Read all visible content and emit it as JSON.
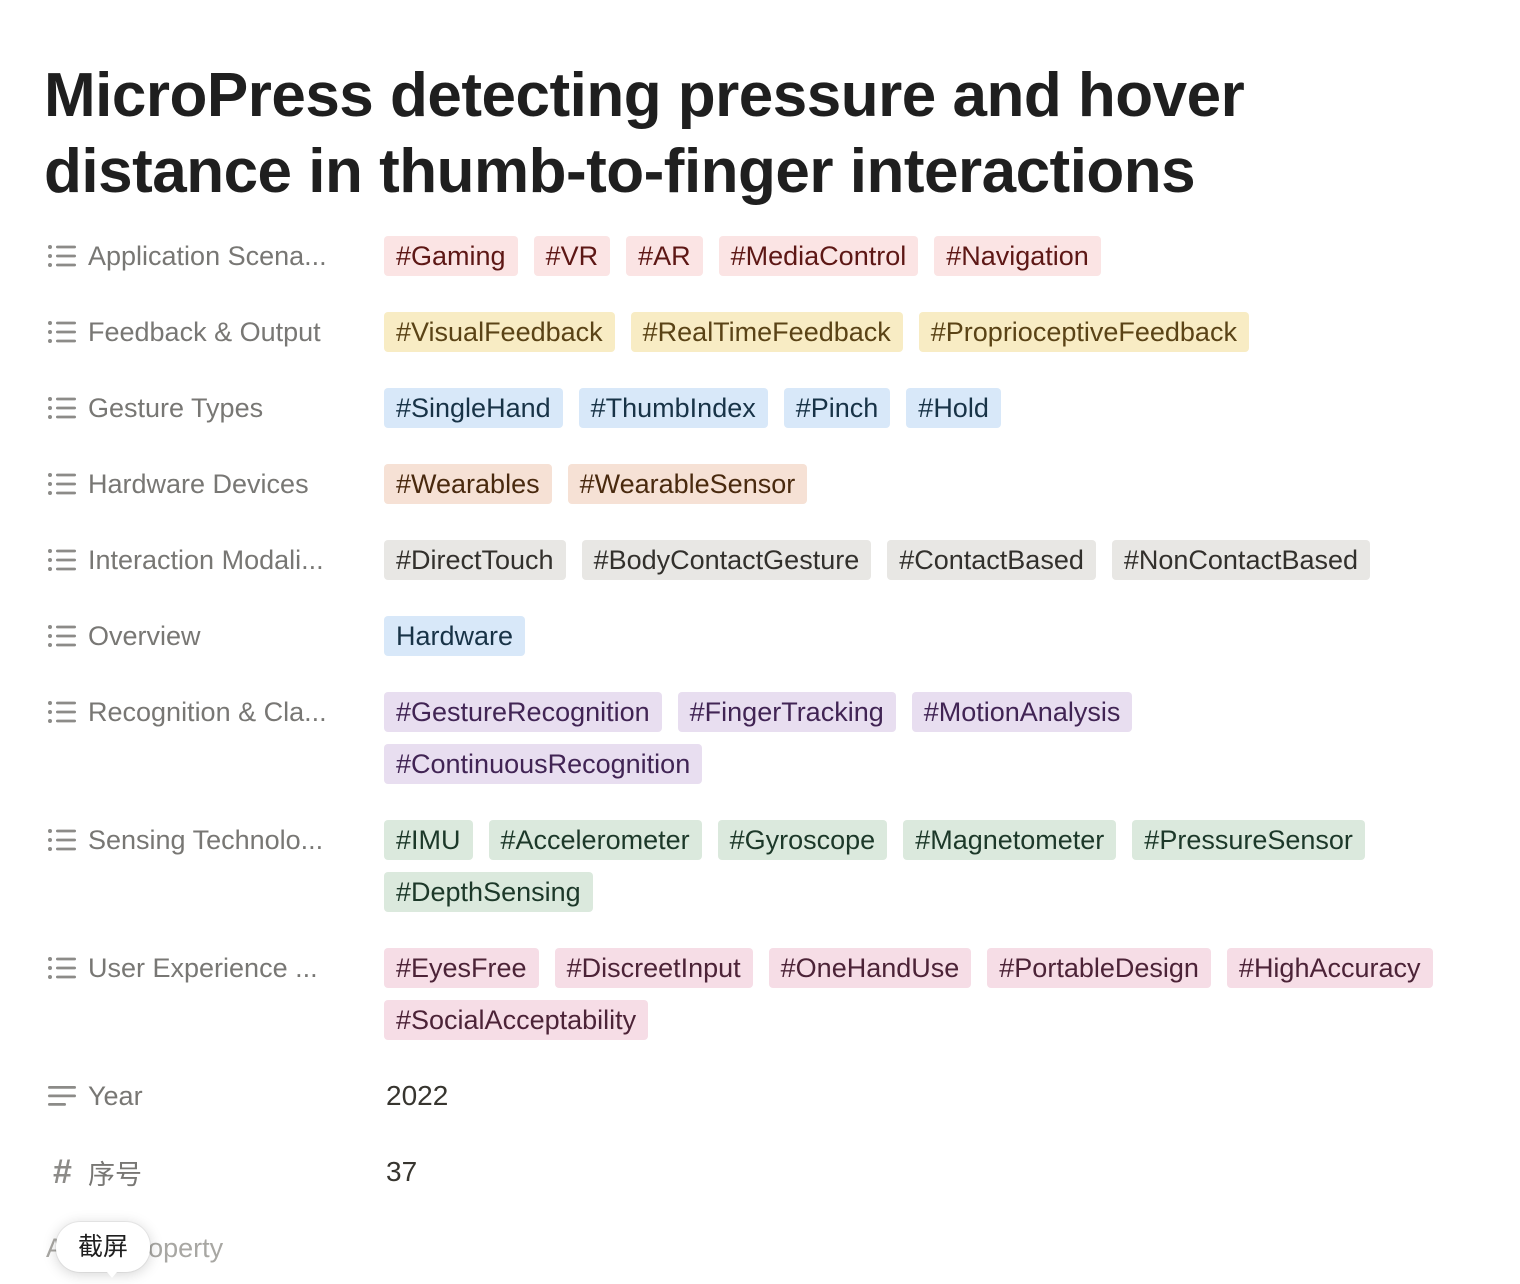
{
  "page": {
    "title": "MicroPress detecting pressure and hover distance in thumb-to-finger interactions"
  },
  "properties": [
    {
      "id": "application",
      "label": "Application Scena...",
      "icon": "list-icon",
      "tags": [
        {
          "text": "#Gaming",
          "color": "red"
        },
        {
          "text": "#VR",
          "color": "red"
        },
        {
          "text": "#AR",
          "color": "red"
        },
        {
          "text": "#MediaControl",
          "color": "red"
        },
        {
          "text": "#Navigation",
          "color": "red"
        }
      ]
    },
    {
      "id": "feedback",
      "label": "Feedback & Output",
      "icon": "list-icon",
      "tags": [
        {
          "text": "#VisualFeedback",
          "color": "yellow"
        },
        {
          "text": "#RealTimeFeedback",
          "color": "yellow"
        },
        {
          "text": "#ProprioceptiveFeedback",
          "color": "yellow"
        }
      ]
    },
    {
      "id": "gesture",
      "label": "Gesture Types",
      "icon": "list-icon",
      "tags": [
        {
          "text": "#SingleHand",
          "color": "blue"
        },
        {
          "text": "#ThumbIndex",
          "color": "blue"
        },
        {
          "text": "#Pinch",
          "color": "blue"
        },
        {
          "text": "#Hold",
          "color": "blue"
        }
      ]
    },
    {
      "id": "hardware",
      "label": "Hardware Devices",
      "icon": "list-icon",
      "tags": [
        {
          "text": "#Wearables",
          "color": "orange"
        },
        {
          "text": "#WearableSensor",
          "color": "orange"
        }
      ]
    },
    {
      "id": "interaction",
      "label": "Interaction Modali...",
      "icon": "list-icon",
      "tags": [
        {
          "text": "#DirectTouch",
          "color": "gray"
        },
        {
          "text": "#BodyContactGesture",
          "color": "gray"
        },
        {
          "text": "#ContactBased",
          "color": "gray"
        },
        {
          "text": "#NonContactBased",
          "color": "gray"
        }
      ]
    },
    {
      "id": "overview",
      "label": "Overview",
      "icon": "list-icon",
      "tags": [
        {
          "text": "Hardware",
          "color": "blue"
        }
      ]
    },
    {
      "id": "recognition",
      "label": "Recognition & Cla...",
      "icon": "list-icon",
      "tags": [
        {
          "text": "#GestureRecognition",
          "color": "purple"
        },
        {
          "text": "#FingerTracking",
          "color": "purple"
        },
        {
          "text": "#MotionAnalysis",
          "color": "purple"
        },
        {
          "text": "#ContinuousRecognition",
          "color": "purple"
        }
      ]
    },
    {
      "id": "sensing",
      "label": "Sensing Technolo...",
      "icon": "list-icon",
      "tags": [
        {
          "text": "#IMU",
          "color": "green"
        },
        {
          "text": "#Accelerometer",
          "color": "green"
        },
        {
          "text": "#Gyroscope",
          "color": "green"
        },
        {
          "text": "#Magnetometer",
          "color": "green"
        },
        {
          "text": "#PressureSensor",
          "color": "green"
        },
        {
          "text": "#DepthSensing",
          "color": "green"
        }
      ]
    },
    {
      "id": "ux",
      "label": "User Experience ...",
      "icon": "list-icon",
      "tags": [
        {
          "text": "#EyesFree",
          "color": "pink"
        },
        {
          "text": "#DiscreetInput",
          "color": "pink"
        },
        {
          "text": "#OneHandUse",
          "color": "pink"
        },
        {
          "text": "#PortableDesign",
          "color": "pink"
        },
        {
          "text": "#HighAccuracy",
          "color": "pink"
        },
        {
          "text": "#SocialAcceptability",
          "color": "pink"
        }
      ]
    },
    {
      "id": "year",
      "label": "Year",
      "icon": "text-icon",
      "value": "2022"
    },
    {
      "id": "number",
      "label": "序号",
      "icon": "number-icon",
      "value": "37"
    }
  ],
  "add_property": {
    "label": "Add a property"
  },
  "tooltip": {
    "label": "截屏"
  }
}
